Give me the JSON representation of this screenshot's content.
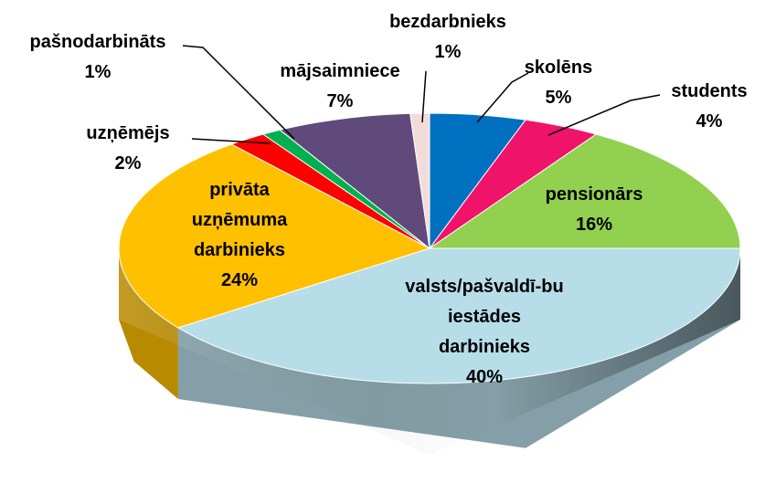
{
  "chart_data": {
    "type": "pie3d",
    "categories": [
      "skolēns",
      "students",
      "pensionārs",
      "valsts/pašvaldī-bu iestādes darbinieks",
      "privāta uzņēmuma darbinieks",
      "uzņēmējs",
      "pašnodarbināts",
      "mājsaimniece",
      "bezdarbnieks"
    ],
    "values": [
      5,
      4,
      16,
      40,
      24,
      2,
      1,
      7,
      1
    ],
    "value_labels": [
      "5%",
      "4%",
      "16%",
      "40%",
      "24%",
      "2%",
      "1%",
      "7%",
      "1%"
    ],
    "colors": [
      "#0070c0",
      "#f0136a",
      "#92d050",
      "#b7dde8",
      "#ffc000",
      "#ff0000",
      "#00b050",
      "#604a7b",
      "#f2dcdb"
    ]
  }
}
